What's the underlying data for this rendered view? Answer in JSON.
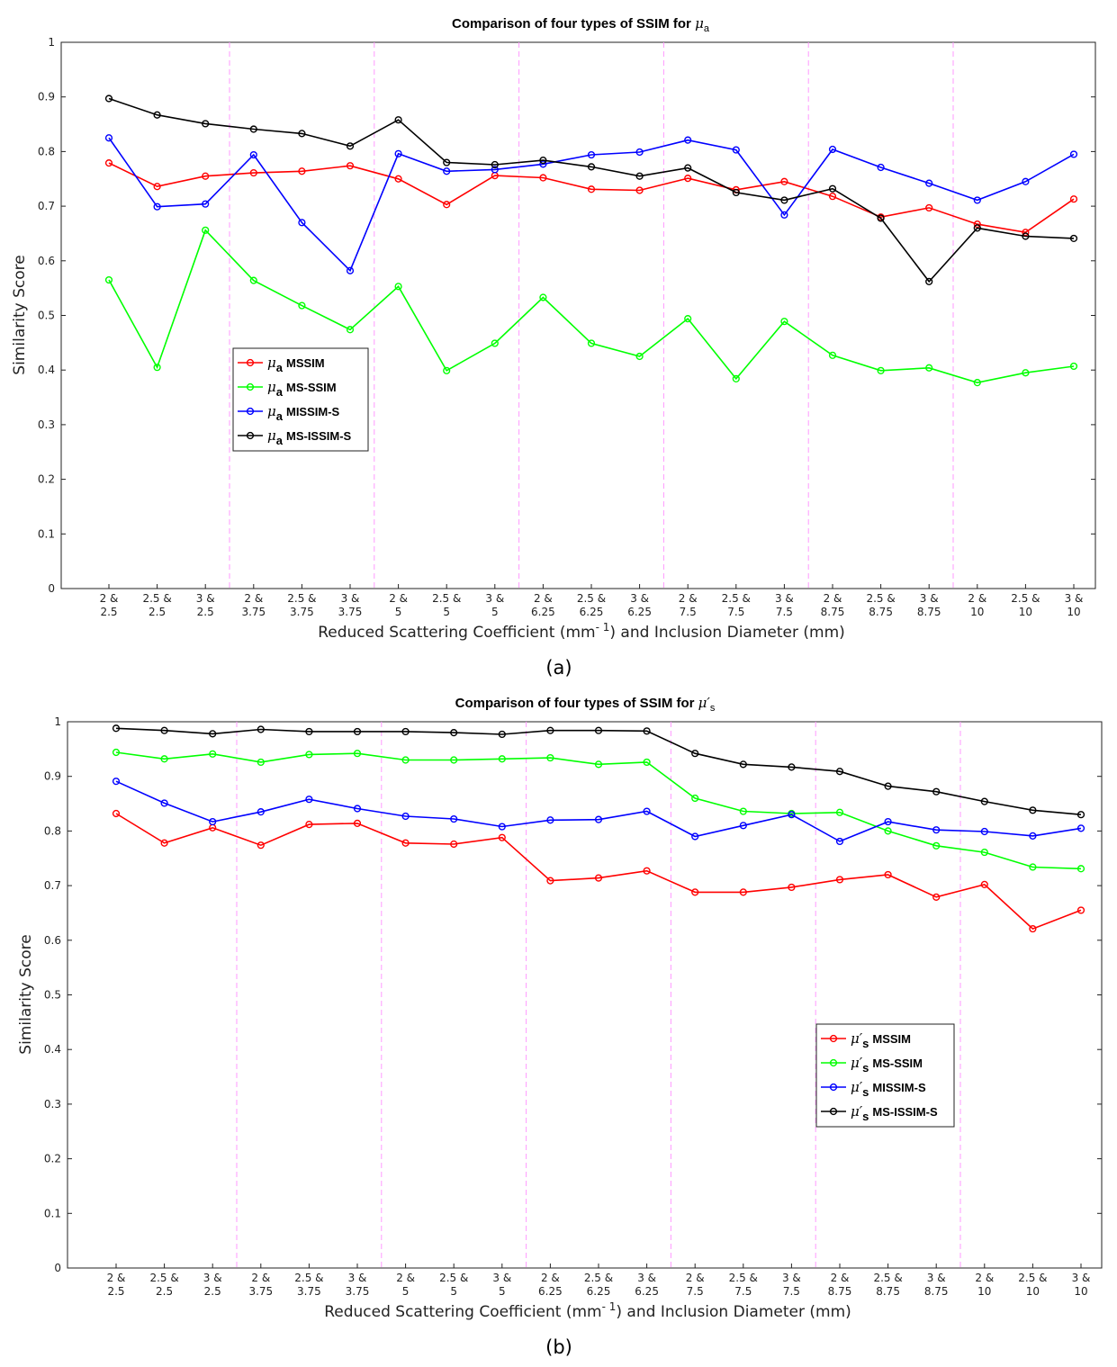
{
  "captions": [
    "(a)",
    "(b)"
  ],
  "chart_data": [
    {
      "type": "line",
      "title": "Comparison of four types of SSIM for",
      "title_symbol": "μ",
      "title_subscript": "a",
      "xlabel_pre": "Reduced Scattering Coefficient (mm",
      "xlabel_sup": "- 1",
      "xlabel_post": ") and Inclusion Diameter (mm)",
      "ylabel": "Similarity Score",
      "ylim": [
        0,
        1
      ],
      "yticks": [
        "0",
        "0.1",
        "0.2",
        "0.3",
        "0.4",
        "0.5",
        "0.6",
        "0.7",
        "0.8",
        "0.9",
        "1"
      ],
      "categories": [
        [
          "2 &",
          "2.5"
        ],
        [
          "2.5 &",
          "2.5"
        ],
        [
          "3 &",
          "2.5"
        ],
        [
          "2 &",
          "3.75"
        ],
        [
          "2.5 &",
          "3.75"
        ],
        [
          "3 &",
          "3.75"
        ],
        [
          "2 &",
          "5"
        ],
        [
          "2.5 &",
          "5"
        ],
        [
          "3 &",
          "5"
        ],
        [
          "2 &",
          "6.25"
        ],
        [
          "2.5 &",
          "6.25"
        ],
        [
          "3 &",
          "6.25"
        ],
        [
          "2 &",
          "7.5"
        ],
        [
          "2.5 &",
          "7.5"
        ],
        [
          "3 &",
          "7.5"
        ],
        [
          "2 &",
          "8.75"
        ],
        [
          "2.5 &",
          "8.75"
        ],
        [
          "3 &",
          "8.75"
        ],
        [
          "2 &",
          "10"
        ],
        [
          "2.5 &",
          "10"
        ],
        [
          "3 &",
          "10"
        ]
      ],
      "group_separators_after": [
        3,
        6,
        9,
        12,
        15,
        18
      ],
      "legend_position": "center-left",
      "series": [
        {
          "symbol": "μ",
          "sub": "a",
          "name": "MSSIM",
          "color": "#ff0000",
          "values": [
            0.779,
            0.736,
            0.755,
            0.761,
            0.764,
            0.774,
            0.75,
            0.703,
            0.756,
            0.752,
            0.731,
            0.729,
            0.751,
            0.73,
            0.745,
            0.718,
            0.68,
            0.697,
            0.667,
            0.652,
            0.713
          ]
        },
        {
          "symbol": "μ",
          "sub": "a",
          "name": "MS-SSIM",
          "color": "#00ff00",
          "values": [
            0.565,
            0.405,
            0.656,
            0.564,
            0.518,
            0.474,
            0.553,
            0.399,
            0.449,
            0.533,
            0.449,
            0.425,
            0.494,
            0.384,
            0.489,
            0.427,
            0.399,
            0.404,
            0.377,
            0.395,
            0.407
          ]
        },
        {
          "symbol": "μ",
          "sub": "a",
          "name": "MISSIM-S",
          "color": "#0000ff",
          "values": [
            0.825,
            0.699,
            0.704,
            0.794,
            0.67,
            0.582,
            0.796,
            0.764,
            0.767,
            0.777,
            0.794,
            0.799,
            0.821,
            0.803,
            0.684,
            0.804,
            0.771,
            0.742,
            0.711,
            0.745,
            0.795
          ]
        },
        {
          "symbol": "μ",
          "sub": "a",
          "name": "MS-ISSIM-S",
          "color": "#000000",
          "values": [
            0.897,
            0.867,
            0.851,
            0.841,
            0.833,
            0.81,
            0.858,
            0.78,
            0.776,
            0.784,
            0.772,
            0.755,
            0.77,
            0.725,
            0.711,
            0.732,
            0.678,
            0.562,
            0.66,
            0.645,
            0.641
          ]
        }
      ]
    },
    {
      "type": "line",
      "title": "Comparison of four types of SSIM for",
      "title_symbol": "μ′",
      "title_subscript": "s",
      "xlabel_pre": "Reduced Scattering Coefficient (mm",
      "xlabel_sup": "- 1",
      "xlabel_post": ") and Inclusion Diameter (mm)",
      "ylabel": "Similarity Score",
      "ylim": [
        0,
        1
      ],
      "yticks": [
        "0",
        "0.1",
        "0.2",
        "0.3",
        "0.4",
        "0.5",
        "0.6",
        "0.7",
        "0.8",
        "0.9",
        "1"
      ],
      "categories": [
        [
          "2 &",
          "2.5"
        ],
        [
          "2.5 &",
          "2.5"
        ],
        [
          "3 &",
          "2.5"
        ],
        [
          "2 &",
          "3.75"
        ],
        [
          "2.5 &",
          "3.75"
        ],
        [
          "3 &",
          "3.75"
        ],
        [
          "2 &",
          "5"
        ],
        [
          "2.5 &",
          "5"
        ],
        [
          "3 &",
          "5"
        ],
        [
          "2 &",
          "6.25"
        ],
        [
          "2.5 &",
          "6.25"
        ],
        [
          "3 &",
          "6.25"
        ],
        [
          "2 &",
          "7.5"
        ],
        [
          "2.5 &",
          "7.5"
        ],
        [
          "3 &",
          "7.5"
        ],
        [
          "2 &",
          "8.75"
        ],
        [
          "2.5 &",
          "8.75"
        ],
        [
          "3 &",
          "8.75"
        ],
        [
          "2 &",
          "10"
        ],
        [
          "2.5 &",
          "10"
        ],
        [
          "3 &",
          "10"
        ]
      ],
      "group_separators_after": [
        3,
        6,
        9,
        12,
        15,
        18
      ],
      "legend_position": "center-right",
      "series": [
        {
          "symbol": "μ′",
          "sub": "s",
          "name": "MSSIM",
          "color": "#ff0000",
          "values": [
            0.832,
            0.778,
            0.806,
            0.774,
            0.812,
            0.814,
            0.778,
            0.776,
            0.788,
            0.709,
            0.714,
            0.727,
            0.688,
            0.688,
            0.697,
            0.711,
            0.72,
            0.679,
            0.702,
            0.621,
            0.655
          ]
        },
        {
          "symbol": "μ′",
          "sub": "s",
          "name": "MS-SSIM",
          "color": "#00ff00",
          "values": [
            0.944,
            0.932,
            0.941,
            0.926,
            0.94,
            0.942,
            0.93,
            0.93,
            0.932,
            0.934,
            0.922,
            0.926,
            0.86,
            0.836,
            0.832,
            0.834,
            0.8,
            0.773,
            0.761,
            0.734,
            0.731
          ]
        },
        {
          "symbol": "μ′",
          "sub": "s",
          "name": "MISSIM-S",
          "color": "#0000ff",
          "values": [
            0.891,
            0.851,
            0.817,
            0.835,
            0.858,
            0.841,
            0.827,
            0.822,
            0.808,
            0.82,
            0.821,
            0.836,
            0.79,
            0.81,
            0.83,
            0.781,
            0.817,
            0.802,
            0.799,
            0.791,
            0.805
          ]
        },
        {
          "symbol": "μ′",
          "sub": "s",
          "name": "MS-ISSIM-S",
          "color": "#000000",
          "values": [
            0.988,
            0.984,
            0.978,
            0.986,
            0.982,
            0.982,
            0.982,
            0.98,
            0.977,
            0.984,
            0.984,
            0.983,
            0.942,
            0.922,
            0.917,
            0.909,
            0.882,
            0.872,
            0.854,
            0.838,
            0.83
          ]
        }
      ]
    }
  ]
}
